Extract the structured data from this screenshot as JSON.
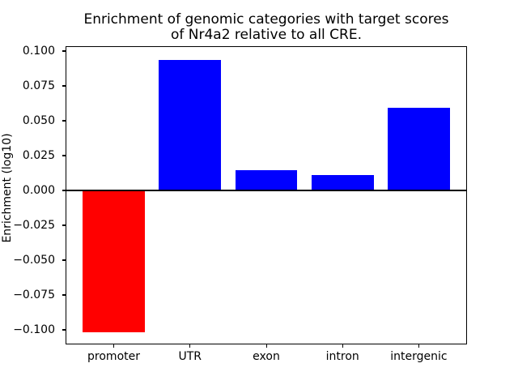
{
  "chart_data": {
    "type": "bar",
    "title": "Enrichment of genomic categories with target scores\nof Nr4a2 relative to all CRE.",
    "title_lines": [
      "Enrichment of genomic categories with target scores",
      "of Nr4a2 relative to all CRE."
    ],
    "xlabel": "",
    "ylabel": "Enrichment (log10)",
    "categories": [
      "promoter",
      "UTR",
      "exon",
      "intron",
      "intergenic"
    ],
    "values": [
      -0.1017,
      0.0936,
      0.0145,
      0.011,
      0.0593
    ],
    "bar_colors": [
      "#ff0000",
      "#0000ff",
      "#0000ff",
      "#0000ff",
      "#0000ff"
    ],
    "ylim": [
      -0.1105,
      0.1035
    ],
    "yticks": [
      0.1,
      0.075,
      0.05,
      0.025,
      0.0,
      -0.025,
      -0.05,
      -0.075,
      -0.1
    ],
    "ytick_labels": [
      "0.100",
      "0.075",
      "0.050",
      "0.025",
      "0.000",
      "−0.025",
      "−0.050",
      "−0.075",
      "−0.100"
    ],
    "grid": false,
    "legend": null,
    "zero_line": true,
    "zero_line_color": "#000000",
    "background_color": "#ffffff"
  }
}
